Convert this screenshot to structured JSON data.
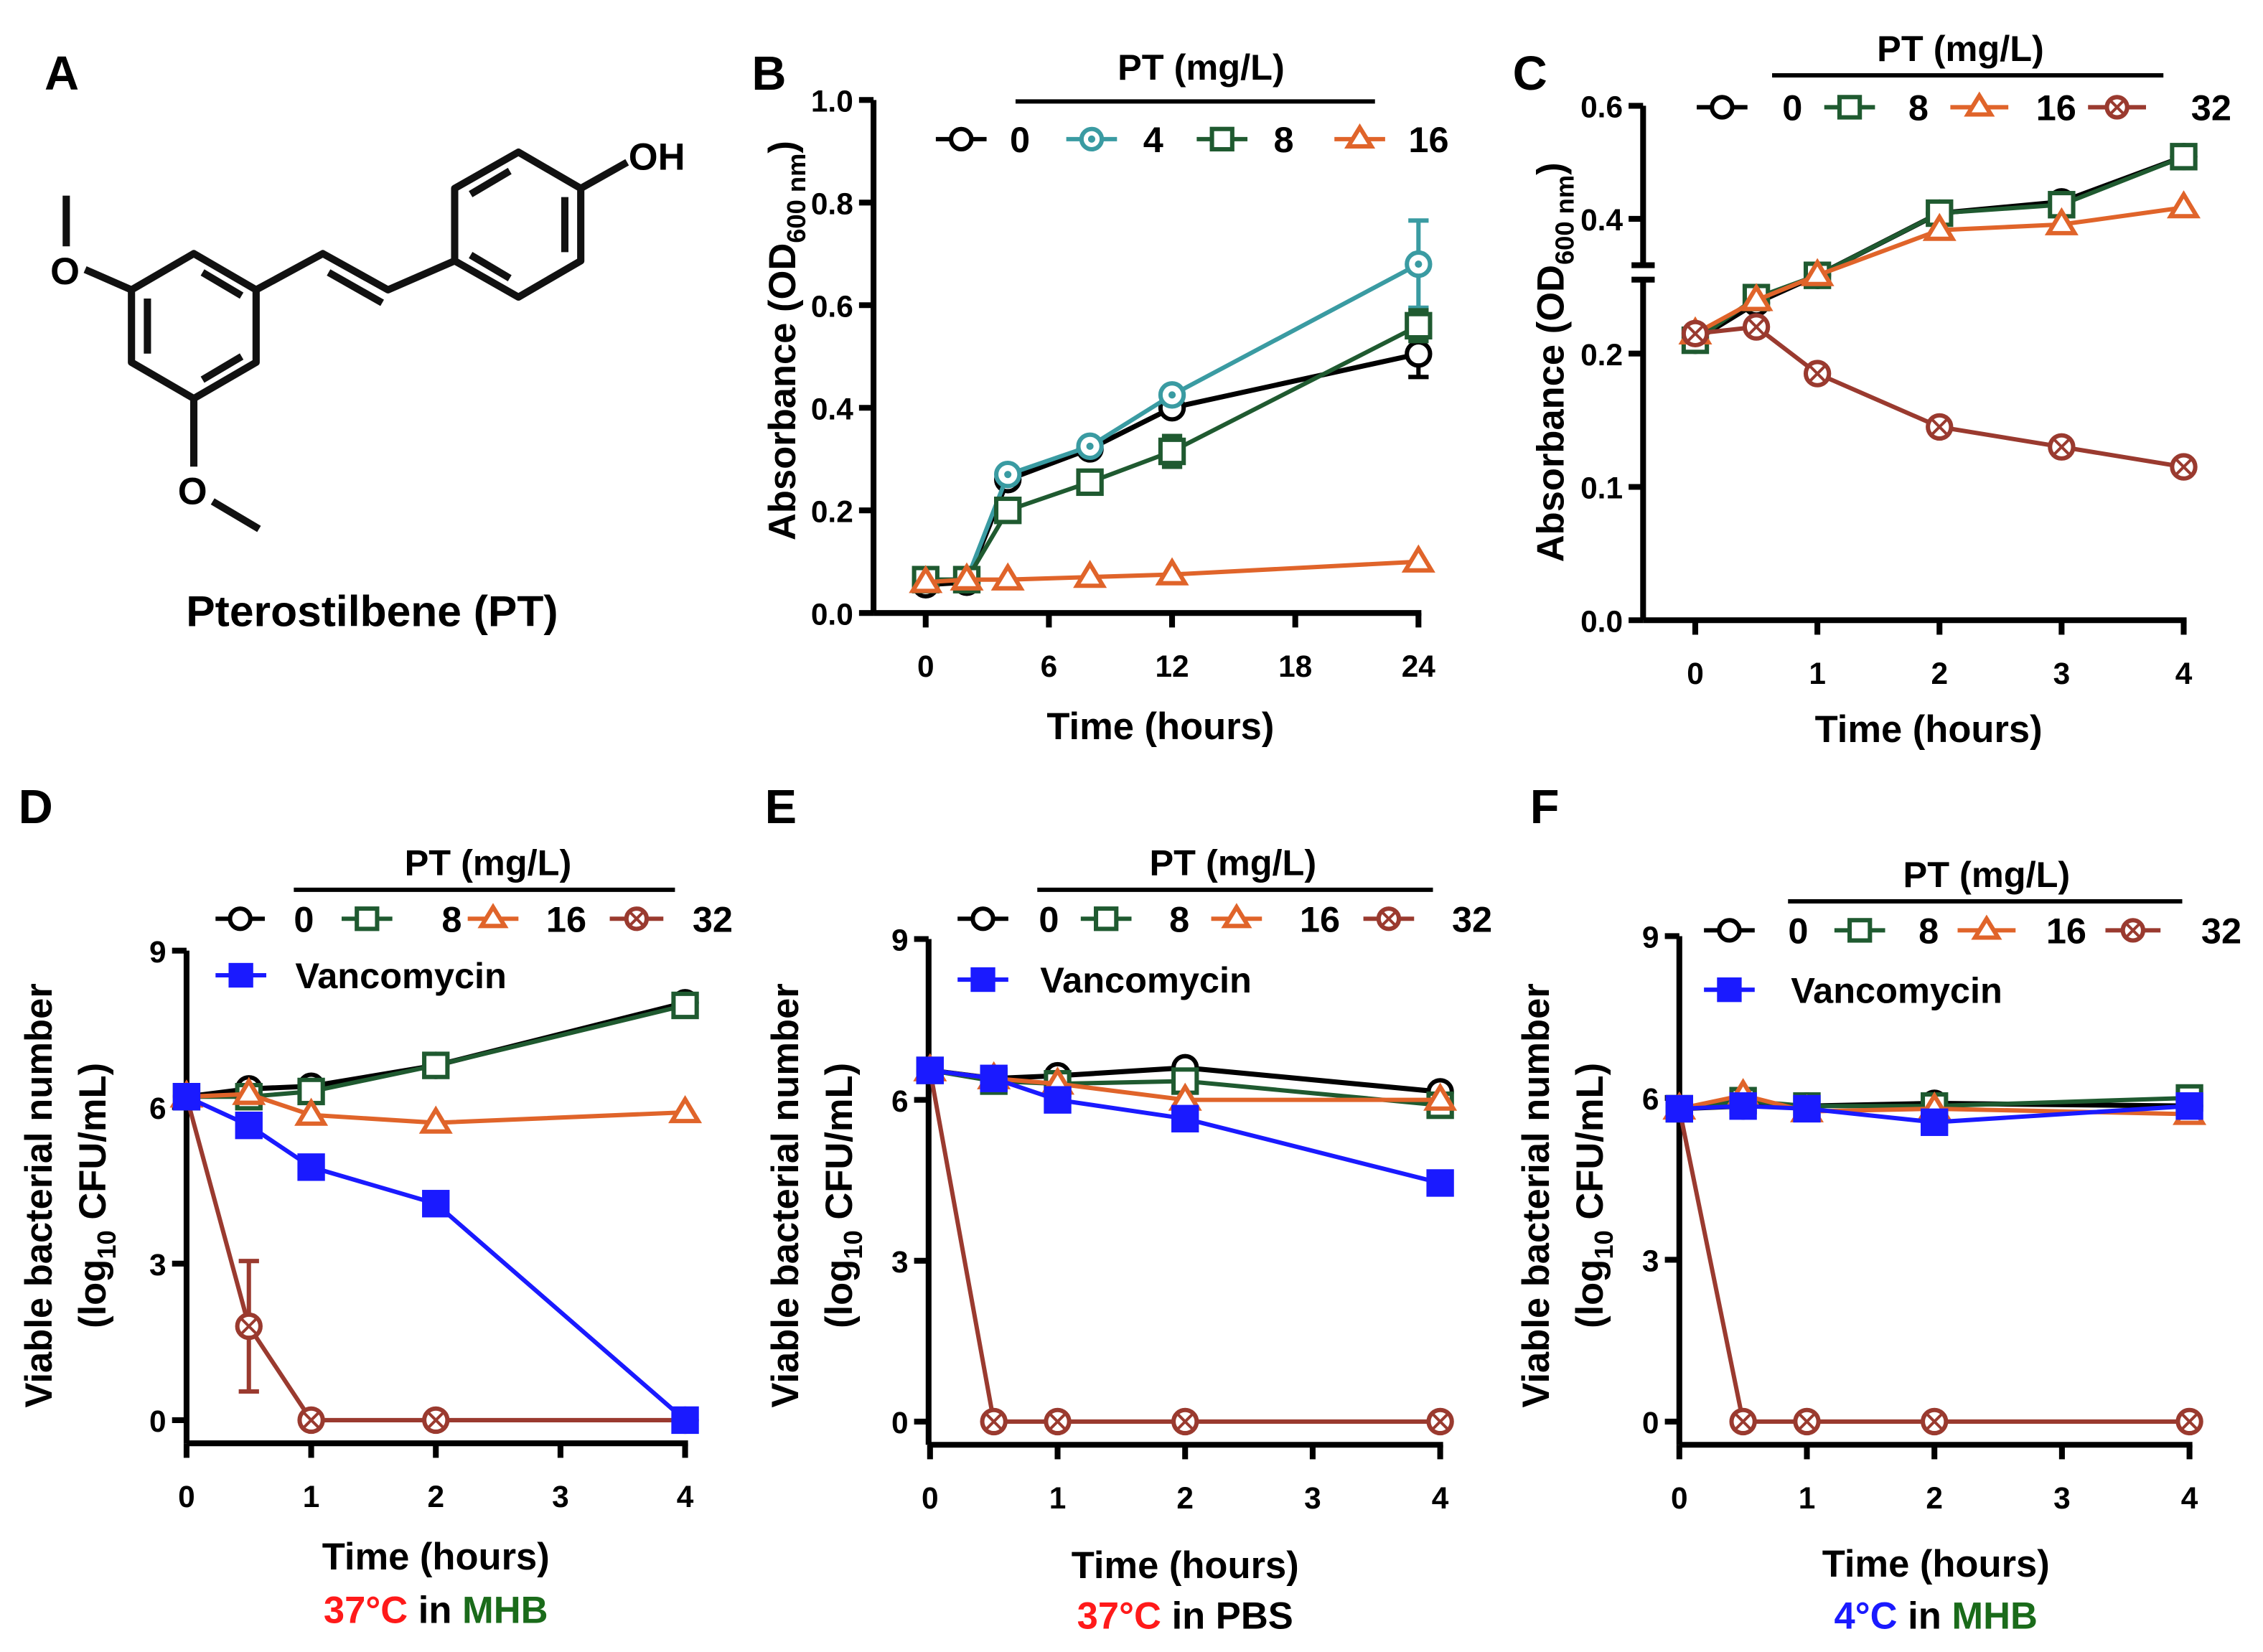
{
  "panel_a": {
    "letter": "A",
    "compound_name": "Pterostilbene (PT)",
    "atoms": {
      "hydroxyl": "OH",
      "methoxy_top": "O",
      "methoxy_bottom": "O"
    }
  },
  "colors": {
    "pt0": "#000000",
    "pt4": "#3a9ba2",
    "pt8": "#1f5a30",
    "pt16": "#e0642a",
    "pt32": "#9a3a2f",
    "vancomycin": "#1a1aff",
    "red_text": "#ff1a1a",
    "green_text": "#1a6b1a",
    "blue_text": "#1a1aff"
  },
  "chart_data": [
    {
      "panel": "B",
      "type": "line",
      "legend_title": "PT (mg/L)",
      "xlabel": "Time (hours)",
      "ylabel": "Absorbance (OD",
      "ylabel_sub": "600 nm",
      "ylabel_end": ")",
      "xlim": [
        0,
        24
      ],
      "ylim": [
        0,
        1.0
      ],
      "xticks": [
        0,
        6,
        12,
        18,
        24
      ],
      "xtick_labels": [
        "0",
        "6",
        "12",
        "18",
        "24"
      ],
      "yticks": [
        0,
        0.2,
        0.4,
        0.6,
        0.8,
        1.0
      ],
      "ytick_labels": [
        "0.0",
        "0.2",
        "0.4",
        "0.6",
        "0.8",
        "1.0"
      ],
      "x": [
        0,
        2,
        4,
        8,
        12,
        24
      ],
      "series": [
        {
          "name": "0",
          "key": "pt0",
          "marker": "circle",
          "values": [
            0.055,
            0.06,
            0.26,
            0.32,
            0.4,
            0.505
          ],
          "errors": [
            0,
            0,
            0,
            0,
            0.01,
            0.045
          ]
        },
        {
          "name": "4",
          "key": "pt4",
          "marker": "circle-dot",
          "values": [
            0.065,
            0.065,
            0.27,
            0.325,
            0.425,
            0.68
          ],
          "errors": [
            0,
            0,
            0,
            0,
            0,
            0.085
          ]
        },
        {
          "name": "8",
          "key": "pt8",
          "marker": "square",
          "values": [
            0.065,
            0.065,
            0.2,
            0.255,
            0.315,
            0.56
          ],
          "errors": [
            0,
            0,
            0,
            0.01,
            0.03,
            0.03
          ]
        },
        {
          "name": "16",
          "key": "pt16",
          "marker": "triangle",
          "values": [
            0.06,
            0.065,
            0.065,
            0.07,
            0.075,
            0.1
          ],
          "errors": [
            0,
            0,
            0,
            0,
            0,
            0
          ]
        }
      ]
    },
    {
      "panel": "C",
      "type": "line",
      "legend_title": "PT (mg/L)",
      "xlabel": "Time (hours)",
      "ylabel": "Absorbance (OD",
      "ylabel_sub": "600 nm",
      "ylabel_end": ")",
      "xlim": [
        0,
        4
      ],
      "ylim": [
        0,
        0.6
      ],
      "y_break": [
        0.26,
        0.3
      ],
      "xticks": [
        0,
        1,
        2,
        3,
        4
      ],
      "xtick_labels": [
        "0",
        "1",
        "2",
        "3",
        "4"
      ],
      "yticks": [
        0,
        0.1,
        0.2,
        0.4,
        0.6
      ],
      "ytick_labels": [
        "0.0",
        "0.1",
        "0.2",
        "0.4",
        "0.6"
      ],
      "x": [
        0,
        0.5,
        1,
        2,
        3,
        4
      ],
      "series": [
        {
          "name": "0",
          "key": "pt0",
          "marker": "circle",
          "values": [
            0.21,
            0.238,
            0.3,
            0.41,
            0.43,
            0.51
          ]
        },
        {
          "name": "8",
          "key": "pt8",
          "marker": "square",
          "values": [
            0.21,
            0.242,
            0.3,
            0.41,
            0.425,
            0.51
          ]
        },
        {
          "name": "16",
          "key": "pt16",
          "marker": "triangle",
          "values": [
            0.215,
            0.24,
            0.3,
            0.38,
            0.39,
            0.42
          ]
        },
        {
          "name": "32",
          "key": "pt32",
          "marker": "circle-x",
          "values": [
            0.215,
            0.22,
            0.185,
            0.145,
            0.13,
            0.115
          ]
        }
      ]
    },
    {
      "panel": "D",
      "type": "line",
      "legend_title": "PT (mg/L)",
      "xlabel": "Time (hours)",
      "ylabel": "Viable bacterial number",
      "ylabel2": "(log",
      "ylabel2_sub": "10",
      "ylabel2_end": " CFU/mL)",
      "condition": [
        {
          "text": "37°C",
          "key": "red_text"
        },
        {
          "text": " in ",
          "key": "pt0"
        },
        {
          "text": "MHB",
          "key": "green_text"
        }
      ],
      "xlim": [
        0,
        4
      ],
      "ylim": [
        0,
        9
      ],
      "xticks": [
        0,
        1,
        2,
        3,
        4
      ],
      "xtick_labels": [
        "0",
        "1",
        "2",
        "3",
        "4"
      ],
      "yticks": [
        0,
        3,
        6,
        9
      ],
      "ytick_labels": [
        "0",
        "3",
        "6",
        "9"
      ],
      "x": [
        0,
        0.5,
        1,
        2,
        4
      ],
      "series": [
        {
          "name": "0",
          "key": "pt0",
          "marker": "circle",
          "values": [
            6.2,
            6.35,
            6.4,
            6.8,
            8.0
          ]
        },
        {
          "name": "8",
          "key": "pt8",
          "marker": "square",
          "values": [
            6.2,
            6.2,
            6.3,
            6.8,
            7.95
          ]
        },
        {
          "name": "16",
          "key": "pt16",
          "marker": "triangle",
          "values": [
            6.2,
            6.25,
            5.85,
            5.7,
            5.9
          ]
        },
        {
          "name": "32",
          "key": "pt32",
          "marker": "circle-x",
          "values": [
            6.2,
            1.8,
            0,
            0,
            0
          ],
          "errors": [
            0,
            1.25,
            0,
            0,
            0
          ]
        },
        {
          "name": "Vancomycin",
          "key": "vancomycin",
          "marker": "square-filled",
          "values": [
            6.2,
            5.65,
            4.85,
            4.15,
            0
          ]
        }
      ]
    },
    {
      "panel": "E",
      "type": "line",
      "legend_title": "PT (mg/L)",
      "xlabel": "Time (hours)",
      "ylabel": "Viable bacterial number",
      "ylabel2": "(log",
      "ylabel2_sub": "10",
      "ylabel2_end": " CFU/mL)",
      "condition": [
        {
          "text": "37°C",
          "key": "red_text"
        },
        {
          "text": " in PBS",
          "key": "pt0"
        }
      ],
      "xlim": [
        0,
        4
      ],
      "ylim": [
        0,
        9
      ],
      "xticks": [
        0,
        1,
        2,
        3,
        4
      ],
      "xtick_labels": [
        "0",
        "1",
        "2",
        "3",
        "4"
      ],
      "yticks": [
        0,
        3,
        6,
        9
      ],
      "ytick_labels": [
        "0",
        "3",
        "6",
        "9"
      ],
      "x": [
        0,
        0.5,
        1,
        2,
        4
      ],
      "series": [
        {
          "name": "0",
          "key": "pt0",
          "marker": "circle",
          "values": [
            6.55,
            6.4,
            6.45,
            6.6,
            6.15
          ]
        },
        {
          "name": "8",
          "key": "pt8",
          "marker": "square",
          "values": [
            6.55,
            6.35,
            6.3,
            6.35,
            5.9
          ]
        },
        {
          "name": "16",
          "key": "pt16",
          "marker": "triangle",
          "values": [
            6.55,
            6.4,
            6.3,
            6.0,
            6.0
          ]
        },
        {
          "name": "32",
          "key": "pt32",
          "marker": "circle-x",
          "values": [
            6.55,
            0,
            0,
            0,
            0
          ]
        },
        {
          "name": "Vancomycin",
          "key": "vancomycin",
          "marker": "square-filled",
          "values": [
            6.55,
            6.4,
            6.0,
            5.65,
            4.45
          ]
        }
      ]
    },
    {
      "panel": "F",
      "type": "line",
      "legend_title": "PT (mg/L)",
      "xlabel": "Time (hours)",
      "ylabel": "Viable bacterial number",
      "ylabel2": "(log",
      "ylabel2_sub": "10",
      "ylabel2_end": " CFU/mL)",
      "condition": [
        {
          "text": "4°C",
          "key": "blue_text"
        },
        {
          "text": " in ",
          "key": "pt0"
        },
        {
          "text": "MHB",
          "key": "green_text"
        }
      ],
      "xlim": [
        0,
        4
      ],
      "ylim": [
        0,
        9
      ],
      "xticks": [
        0,
        1,
        2,
        3,
        4
      ],
      "xtick_labels": [
        "0",
        "1",
        "2",
        "3",
        "4"
      ],
      "yticks": [
        0,
        3,
        6,
        9
      ],
      "ytick_labels": [
        "0",
        "3",
        "6",
        "9"
      ],
      "x": [
        0,
        0.5,
        1,
        2,
        4
      ],
      "series": [
        {
          "name": "0",
          "key": "pt0",
          "marker": "circle",
          "values": [
            5.8,
            5.85,
            5.85,
            5.9,
            5.85
          ]
        },
        {
          "name": "8",
          "key": "pt8",
          "marker": "square",
          "values": [
            5.8,
            5.95,
            5.85,
            5.85,
            6.0
          ]
        },
        {
          "name": "16",
          "key": "pt16",
          "marker": "triangle",
          "values": [
            5.8,
            6.05,
            5.75,
            5.8,
            5.7
          ]
        },
        {
          "name": "32",
          "key": "pt32",
          "marker": "circle-x",
          "values": [
            5.8,
            0,
            0,
            0,
            0
          ]
        },
        {
          "name": "Vancomycin",
          "key": "vancomycin",
          "marker": "square-filled",
          "values": [
            5.8,
            5.85,
            5.8,
            5.55,
            5.85
          ]
        }
      ]
    }
  ]
}
